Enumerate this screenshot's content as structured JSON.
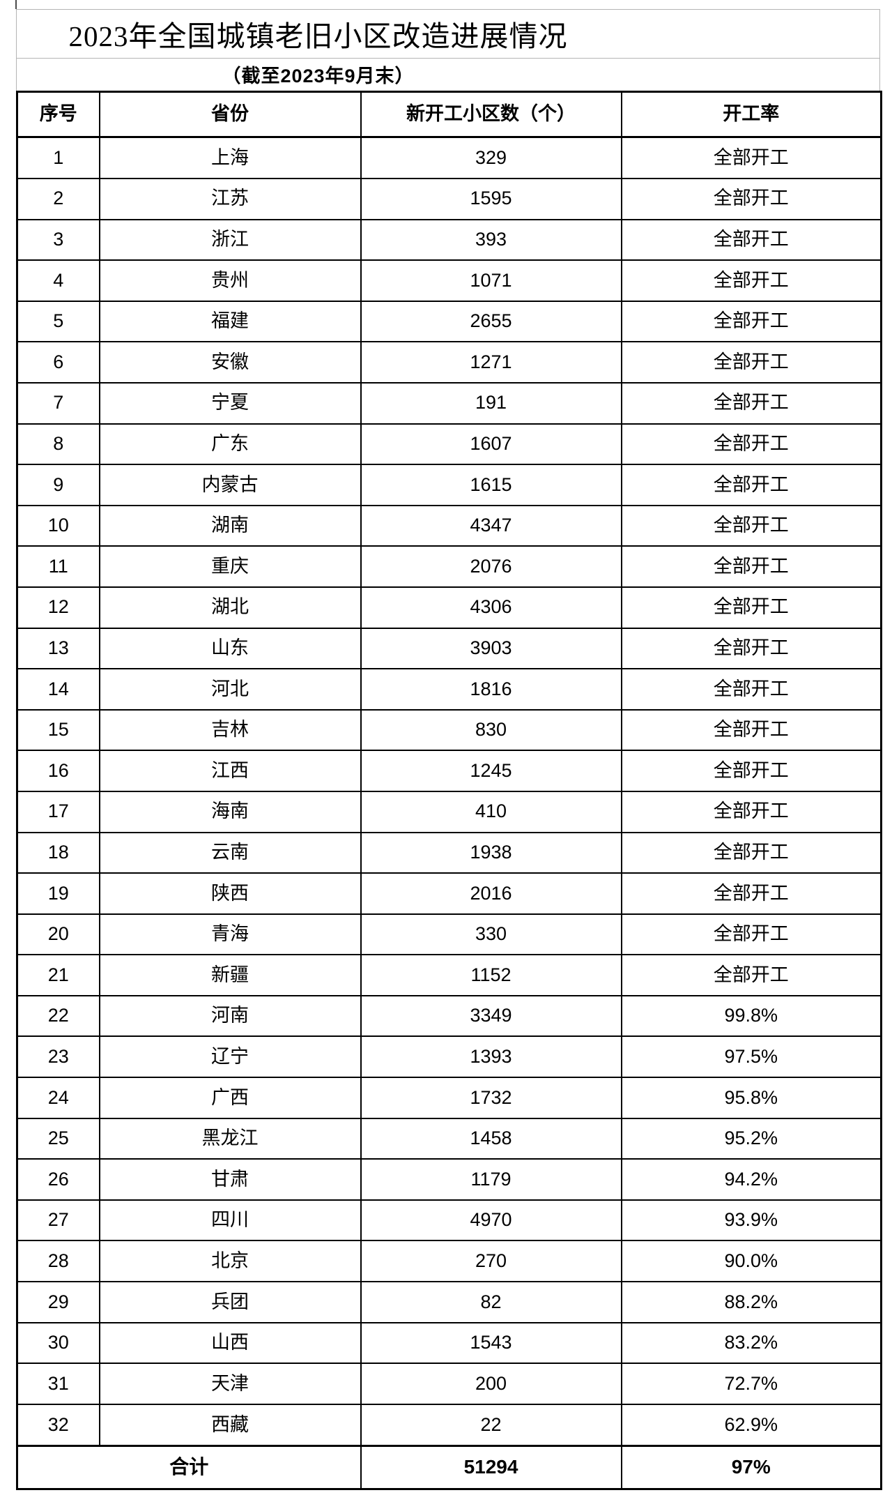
{
  "title": "2023年全国城镇老旧小区改造进展情况",
  "subtitle": "（截至2023年9月末）",
  "table": {
    "headers": [
      "序号",
      "省份",
      "新开工小区数（个）",
      "开工率"
    ],
    "rows": [
      {
        "index": "1",
        "province": "上海",
        "count": "329",
        "rate": "全部开工"
      },
      {
        "index": "2",
        "province": "江苏",
        "count": "1595",
        "rate": "全部开工"
      },
      {
        "index": "3",
        "province": "浙江",
        "count": "393",
        "rate": "全部开工"
      },
      {
        "index": "4",
        "province": "贵州",
        "count": "1071",
        "rate": "全部开工"
      },
      {
        "index": "5",
        "province": "福建",
        "count": "2655",
        "rate": "全部开工"
      },
      {
        "index": "6",
        "province": "安徽",
        "count": "1271",
        "rate": "全部开工"
      },
      {
        "index": "7",
        "province": "宁夏",
        "count": "191",
        "rate": "全部开工"
      },
      {
        "index": "8",
        "province": "广东",
        "count": "1607",
        "rate": "全部开工"
      },
      {
        "index": "9",
        "province": "内蒙古",
        "count": "1615",
        "rate": "全部开工"
      },
      {
        "index": "10",
        "province": "湖南",
        "count": "4347",
        "rate": "全部开工"
      },
      {
        "index": "11",
        "province": "重庆",
        "count": "2076",
        "rate": "全部开工"
      },
      {
        "index": "12",
        "province": "湖北",
        "count": "4306",
        "rate": "全部开工"
      },
      {
        "index": "13",
        "province": "山东",
        "count": "3903",
        "rate": "全部开工"
      },
      {
        "index": "14",
        "province": "河北",
        "count": "1816",
        "rate": "全部开工"
      },
      {
        "index": "15",
        "province": "吉林",
        "count": "830",
        "rate": "全部开工"
      },
      {
        "index": "16",
        "province": "江西",
        "count": "1245",
        "rate": "全部开工"
      },
      {
        "index": "17",
        "province": "海南",
        "count": "410",
        "rate": "全部开工"
      },
      {
        "index": "18",
        "province": "云南",
        "count": "1938",
        "rate": "全部开工"
      },
      {
        "index": "19",
        "province": "陕西",
        "count": "2016",
        "rate": "全部开工"
      },
      {
        "index": "20",
        "province": "青海",
        "count": "330",
        "rate": "全部开工"
      },
      {
        "index": "21",
        "province": "新疆",
        "count": "1152",
        "rate": "全部开工"
      },
      {
        "index": "22",
        "province": "河南",
        "count": "3349",
        "rate": "99.8%"
      },
      {
        "index": "23",
        "province": "辽宁",
        "count": "1393",
        "rate": "97.5%"
      },
      {
        "index": "24",
        "province": "广西",
        "count": "1732",
        "rate": "95.8%"
      },
      {
        "index": "25",
        "province": "黑龙江",
        "count": "1458",
        "rate": "95.2%"
      },
      {
        "index": "26",
        "province": "甘肃",
        "count": "1179",
        "rate": "94.2%"
      },
      {
        "index": "27",
        "province": "四川",
        "count": "4970",
        "rate": "93.9%"
      },
      {
        "index": "28",
        "province": "北京",
        "count": "270",
        "rate": "90.0%"
      },
      {
        "index": "29",
        "province": "兵团",
        "count": "82",
        "rate": "88.2%"
      },
      {
        "index": "30",
        "province": "山西",
        "count": "1543",
        "rate": "83.2%"
      },
      {
        "index": "31",
        "province": "天津",
        "count": "200",
        "rate": "72.7%"
      },
      {
        "index": "32",
        "province": "西藏",
        "count": "22",
        "rate": "62.9%"
      }
    ],
    "total": {
      "label": "合计",
      "count": "51294",
      "rate": "97%"
    }
  },
  "colors": {
    "text": "#000000",
    "table_border": "#000000",
    "gridline": "#b4b4b4",
    "background": "#ffffff"
  }
}
